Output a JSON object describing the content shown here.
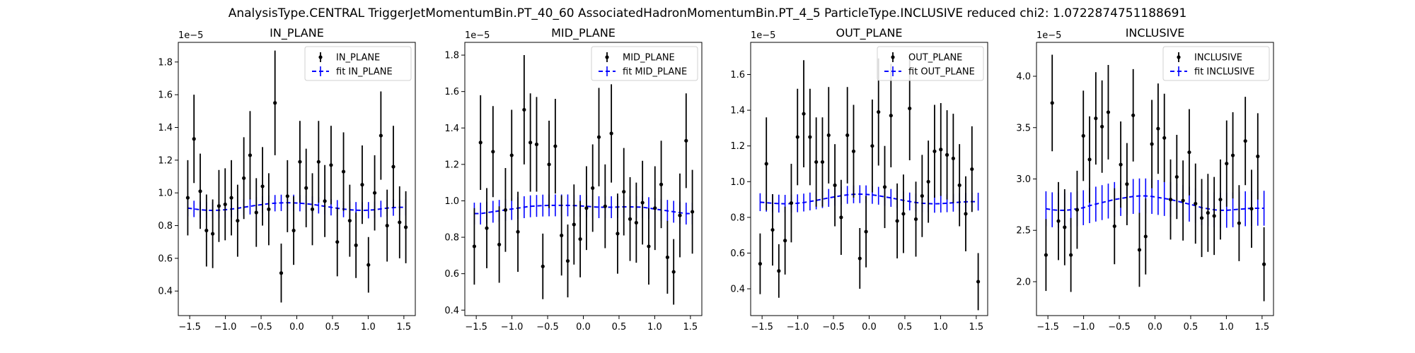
{
  "figure": {
    "suptitle": "AnalysisType.CENTRAL TriggerJetMomentumBin.PT_40_60 AssociatedHadronMomentumBin.PT_4_5 ParticleType.INCLUSIVE reduced chi2: 1.0722874751188691"
  },
  "colors": {
    "data": "#000000",
    "fit": "#0000ff",
    "axes": "#000000",
    "background": "#ffffff"
  },
  "chart_data": [
    {
      "type": "scatter",
      "title": "IN_PLANE",
      "scale_label": "1e−5",
      "xlim": [
        -1.66,
        1.66
      ],
      "ylim": [
        0.25,
        1.92
      ],
      "xticks": [
        -1.5,
        -1.0,
        -0.5,
        0.0,
        0.5,
        1.0,
        1.5
      ],
      "xtick_labels": [
        "−1.5",
        "−1.0",
        "−0.5",
        "0.0",
        "0.5",
        "1.0",
        "1.5"
      ],
      "yticks": [
        0.4,
        0.6,
        0.8,
        1.0,
        1.2,
        1.4,
        1.6,
        1.8
      ],
      "ytick_labels": [
        "0.4",
        "0.6",
        "0.8",
        "1.0",
        "1.2",
        "1.4",
        "1.6",
        "1.8"
      ],
      "legend_position": "top-right",
      "series": [
        {
          "name": "IN_PLANE",
          "kind": "errorbar",
          "y": [
            0.97,
            1.33,
            1.01,
            0.77,
            0.75,
            0.92,
            0.93,
            0.97,
            0.83,
            1.09,
            1.23,
            0.88,
            1.04,
            0.9,
            1.55,
            0.51,
            0.98,
            0.77,
            1.19,
            1.03,
            0.9,
            1.19,
            0.95,
            1.17,
            0.7,
            1.13,
            0.83,
            0.68,
            1.05,
            0.56,
            1.0,
            1.35,
            0.8,
            1.16,
            0.82,
            0.79
          ],
          "yerr": [
            0.23,
            0.27,
            0.23,
            0.22,
            0.21,
            0.22,
            0.22,
            0.23,
            0.22,
            0.25,
            0.27,
            0.21,
            0.24,
            0.22,
            0.32,
            0.18,
            0.22,
            0.21,
            0.25,
            0.24,
            0.22,
            0.25,
            0.22,
            0.24,
            0.21,
            0.24,
            0.22,
            0.2,
            0.24,
            0.17,
            0.23,
            0.27,
            0.22,
            0.25,
            0.22,
            0.22
          ]
        },
        {
          "name": "fit IN_PLANE",
          "kind": "fit",
          "y": [
            0.907,
            0.902,
            0.897,
            0.894,
            0.893,
            0.894,
            0.897,
            0.901,
            0.906,
            0.912,
            0.918,
            0.924,
            0.929,
            0.934,
            0.937,
            0.939,
            0.94,
            0.939,
            0.937,
            0.934,
            0.929,
            0.924,
            0.918,
            0.912,
            0.906,
            0.901,
            0.897,
            0.894,
            0.893,
            0.894,
            0.897,
            0.902,
            0.907,
            0.91,
            0.912,
            0.912
          ],
          "yerr": [
            0.05,
            0.05,
            0.05,
            0.05,
            0.05,
            0.05,
            0.05,
            0.05,
            0.05,
            0.05,
            0.05,
            0.05,
            0.05,
            0.05,
            0.05,
            0.05,
            0.05,
            0.05,
            0.05,
            0.05,
            0.05,
            0.05,
            0.05,
            0.05,
            0.05,
            0.05,
            0.05,
            0.05,
            0.05,
            0.05,
            0.05,
            0.05,
            0.05,
            0.05,
            0.05,
            0.05
          ]
        }
      ]
    },
    {
      "type": "scatter",
      "title": "MID_PLANE",
      "scale_label": "1e−5",
      "xlim": [
        -1.66,
        1.66
      ],
      "ylim": [
        0.37,
        1.87
      ],
      "xticks": [
        -1.5,
        -1.0,
        -0.5,
        0.0,
        0.5,
        1.0,
        1.5
      ],
      "xtick_labels": [
        "−1.5",
        "−1.0",
        "−0.5",
        "0.0",
        "0.5",
        "1.0",
        "1.5"
      ],
      "yticks": [
        0.4,
        0.6,
        0.8,
        1.0,
        1.2,
        1.4,
        1.6,
        1.8
      ],
      "ytick_labels": [
        "0.4",
        "0.6",
        "0.8",
        "1.0",
        "1.2",
        "1.4",
        "1.6",
        "1.8"
      ],
      "legend_position": "top-right",
      "series": [
        {
          "name": "MID_PLANE",
          "kind": "errorbar",
          "y": [
            0.75,
            1.32,
            0.85,
            1.27,
            0.76,
            0.95,
            1.25,
            0.83,
            1.5,
            1.32,
            1.31,
            0.64,
            1.2,
            1.3,
            0.81,
            0.67,
            0.87,
            0.79,
            0.96,
            1.07,
            1.35,
            0.97,
            1.37,
            0.82,
            1.05,
            0.9,
            0.88,
            0.99,
            0.75,
            0.96,
            1.09,
            0.69,
            0.61,
            0.92,
            1.33,
            0.94
          ],
          "yerr": [
            0.21,
            0.26,
            0.22,
            0.25,
            0.21,
            0.23,
            0.25,
            0.22,
            0.3,
            0.27,
            0.26,
            0.18,
            0.24,
            0.26,
            0.22,
            0.2,
            0.22,
            0.21,
            0.23,
            0.24,
            0.27,
            0.23,
            0.27,
            0.22,
            0.24,
            0.23,
            0.22,
            0.23,
            0.21,
            0.23,
            0.24,
            0.2,
            0.18,
            0.23,
            0.26,
            0.23
          ]
        },
        {
          "name": "fit MID_PLANE",
          "kind": "fit",
          "y": [
            0.93,
            0.93,
            0.935,
            0.94,
            0.945,
            0.95,
            0.955,
            0.96,
            0.965,
            0.97,
            0.972,
            0.974,
            0.975,
            0.975,
            0.975,
            0.975,
            0.974,
            0.972,
            0.97,
            0.967,
            0.965,
            0.965,
            0.965,
            0.966,
            0.967,
            0.967,
            0.966,
            0.965,
            0.96,
            0.955,
            0.95,
            0.945,
            0.94,
            0.935,
            0.93,
            0.93
          ],
          "yerr": [
            0.06,
            0.06,
            0.06,
            0.06,
            0.06,
            0.06,
            0.06,
            0.06,
            0.06,
            0.06,
            0.06,
            0.06,
            0.06,
            0.06,
            0.06,
            0.06,
            0.06,
            0.06,
            0.06,
            0.06,
            0.06,
            0.06,
            0.06,
            0.06,
            0.06,
            0.06,
            0.06,
            0.06,
            0.06,
            0.06,
            0.06,
            0.06,
            0.06,
            0.06,
            0.06,
            0.06
          ]
        }
      ]
    },
    {
      "type": "scatter",
      "title": "OUT_PLANE",
      "scale_label": "1e−5",
      "xlim": [
        -1.66,
        1.66
      ],
      "ylim": [
        0.25,
        1.78
      ],
      "xticks": [
        -1.5,
        -1.0,
        -0.5,
        0.0,
        0.5,
        1.0,
        1.5
      ],
      "xtick_labels": [
        "−1.5",
        "−1.0",
        "−0.5",
        "0.0",
        "0.5",
        "1.0",
        "1.5"
      ],
      "yticks": [
        0.4,
        0.6,
        0.8,
        1.0,
        1.2,
        1.4,
        1.6
      ],
      "ytick_labels": [
        "0.4",
        "0.6",
        "0.8",
        "1.0",
        "1.2",
        "1.4",
        "1.6"
      ],
      "legend_position": "top-right",
      "series": [
        {
          "name": "OUT_PLANE",
          "kind": "errorbar",
          "y": [
            0.54,
            1.1,
            0.73,
            0.5,
            0.67,
            0.88,
            1.25,
            1.38,
            1.25,
            1.11,
            1.11,
            1.26,
            0.98,
            0.8,
            1.26,
            1.17,
            0.57,
            0.72,
            1.2,
            1.39,
            0.97,
            1.37,
            0.78,
            0.82,
            1.41,
            0.79,
            0.92,
            1.0,
            1.17,
            1.18,
            1.15,
            1.13,
            0.98,
            0.82,
            1.07,
            0.44
          ],
          "yerr": [
            0.17,
            0.26,
            0.2,
            0.15,
            0.19,
            0.22,
            0.27,
            0.3,
            0.27,
            0.25,
            0.25,
            0.27,
            0.23,
            0.21,
            0.27,
            0.26,
            0.17,
            0.2,
            0.26,
            0.3,
            0.23,
            0.29,
            0.21,
            0.22,
            0.29,
            0.21,
            0.23,
            0.23,
            0.26,
            0.26,
            0.25,
            0.25,
            0.23,
            0.21,
            0.24,
            0.16
          ]
        },
        {
          "name": "fit OUT_PLANE",
          "kind": "fit",
          "y": [
            0.885,
            0.882,
            0.879,
            0.877,
            0.876,
            0.877,
            0.879,
            0.883,
            0.889,
            0.895,
            0.902,
            0.909,
            0.915,
            0.921,
            0.926,
            0.929,
            0.93,
            0.929,
            0.926,
            0.921,
            0.915,
            0.909,
            0.902,
            0.895,
            0.889,
            0.883,
            0.879,
            0.877,
            0.876,
            0.877,
            0.879,
            0.882,
            0.885,
            0.887,
            0.888,
            0.888
          ],
          "yerr": [
            0.05,
            0.05,
            0.05,
            0.05,
            0.05,
            0.05,
            0.05,
            0.05,
            0.05,
            0.05,
            0.05,
            0.05,
            0.05,
            0.05,
            0.05,
            0.05,
            0.05,
            0.05,
            0.05,
            0.05,
            0.05,
            0.05,
            0.05,
            0.05,
            0.05,
            0.05,
            0.05,
            0.05,
            0.05,
            0.05,
            0.05,
            0.05,
            0.05,
            0.05,
            0.05,
            0.05
          ]
        }
      ]
    },
    {
      "type": "scatter",
      "title": "INCLUSIVE",
      "scale_label": "1e−5",
      "xlim": [
        -1.66,
        1.66
      ],
      "ylim": [
        1.67,
        4.33
      ],
      "xticks": [
        -1.5,
        -1.0,
        -0.5,
        0.0,
        0.5,
        1.0,
        1.5
      ],
      "xtick_labels": [
        "−1.5",
        "−1.0",
        "−0.5",
        "0.0",
        "0.5",
        "1.0",
        "1.5"
      ],
      "yticks": [
        2.0,
        2.5,
        3.0,
        3.5,
        4.0
      ],
      "ytick_labels": [
        "2.0",
        "2.5",
        "3.0",
        "3.5",
        "4.0"
      ],
      "legend_position": "top-right",
      "series": [
        {
          "name": "INCLUSIVE",
          "kind": "errorbar",
          "y": [
            2.26,
            3.74,
            2.59,
            2.53,
            2.26,
            2.7,
            3.42,
            3.19,
            3.59,
            3.51,
            3.65,
            2.54,
            3.14,
            2.95,
            3.62,
            2.31,
            2.44,
            3.34,
            3.49,
            3.4,
            2.8,
            3.02,
            2.79,
            3.26,
            2.76,
            2.62,
            2.67,
            2.64,
            2.8,
            3.15,
            3.23,
            2.57,
            3.37,
            2.71,
            3.22,
            2.17
          ],
          "yerr": [
            0.35,
            0.47,
            0.38,
            0.37,
            0.36,
            0.38,
            0.44,
            0.42,
            0.45,
            0.45,
            0.46,
            0.37,
            0.42,
            0.4,
            0.45,
            0.36,
            0.37,
            0.43,
            0.44,
            0.43,
            0.39,
            0.41,
            0.39,
            0.42,
            0.39,
            0.38,
            0.38,
            0.38,
            0.39,
            0.42,
            0.42,
            0.37,
            0.43,
            0.38,
            0.42,
            0.36
          ]
        },
        {
          "name": "fit INCLUSIVE",
          "kind": "fit",
          "y": [
            2.71,
            2.7,
            2.695,
            2.695,
            2.7,
            2.71,
            2.72,
            2.74,
            2.755,
            2.77,
            2.785,
            2.8,
            2.81,
            2.82,
            2.83,
            2.835,
            2.835,
            2.83,
            2.82,
            2.81,
            2.8,
            2.785,
            2.77,
            2.755,
            2.74,
            2.72,
            2.71,
            2.7,
            2.695,
            2.695,
            2.7,
            2.705,
            2.71,
            2.715,
            2.715,
            2.715
          ],
          "yerr": [
            0.17,
            0.17,
            0.17,
            0.17,
            0.17,
            0.17,
            0.17,
            0.17,
            0.17,
            0.17,
            0.17,
            0.17,
            0.17,
            0.17,
            0.17,
            0.17,
            0.17,
            0.17,
            0.17,
            0.17,
            0.17,
            0.17,
            0.17,
            0.17,
            0.17,
            0.17,
            0.17,
            0.17,
            0.17,
            0.17,
            0.17,
            0.17,
            0.17,
            0.17,
            0.17,
            0.17
          ]
        }
      ]
    }
  ]
}
